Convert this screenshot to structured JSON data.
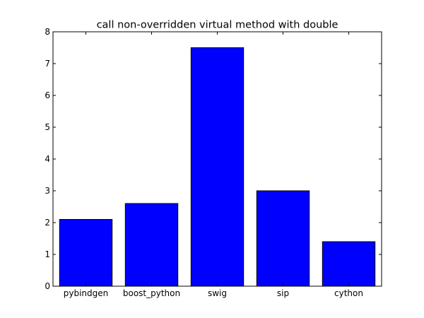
{
  "chart_data": {
    "type": "bar",
    "title": "call non-overridden virtual method with double",
    "xlabel": "",
    "ylabel": "",
    "categories": [
      "pybindgen",
      "boost_python",
      "swig",
      "sip",
      "cython"
    ],
    "values": [
      2.1,
      2.6,
      7.5,
      3.0,
      1.4
    ],
    "ylim": [
      0,
      8
    ],
    "yticks": [
      0,
      1,
      2,
      3,
      4,
      5,
      6,
      7,
      8
    ],
    "bar_color": "#0000ff",
    "edge_color": "#000000",
    "grid": false,
    "legend": "none"
  }
}
